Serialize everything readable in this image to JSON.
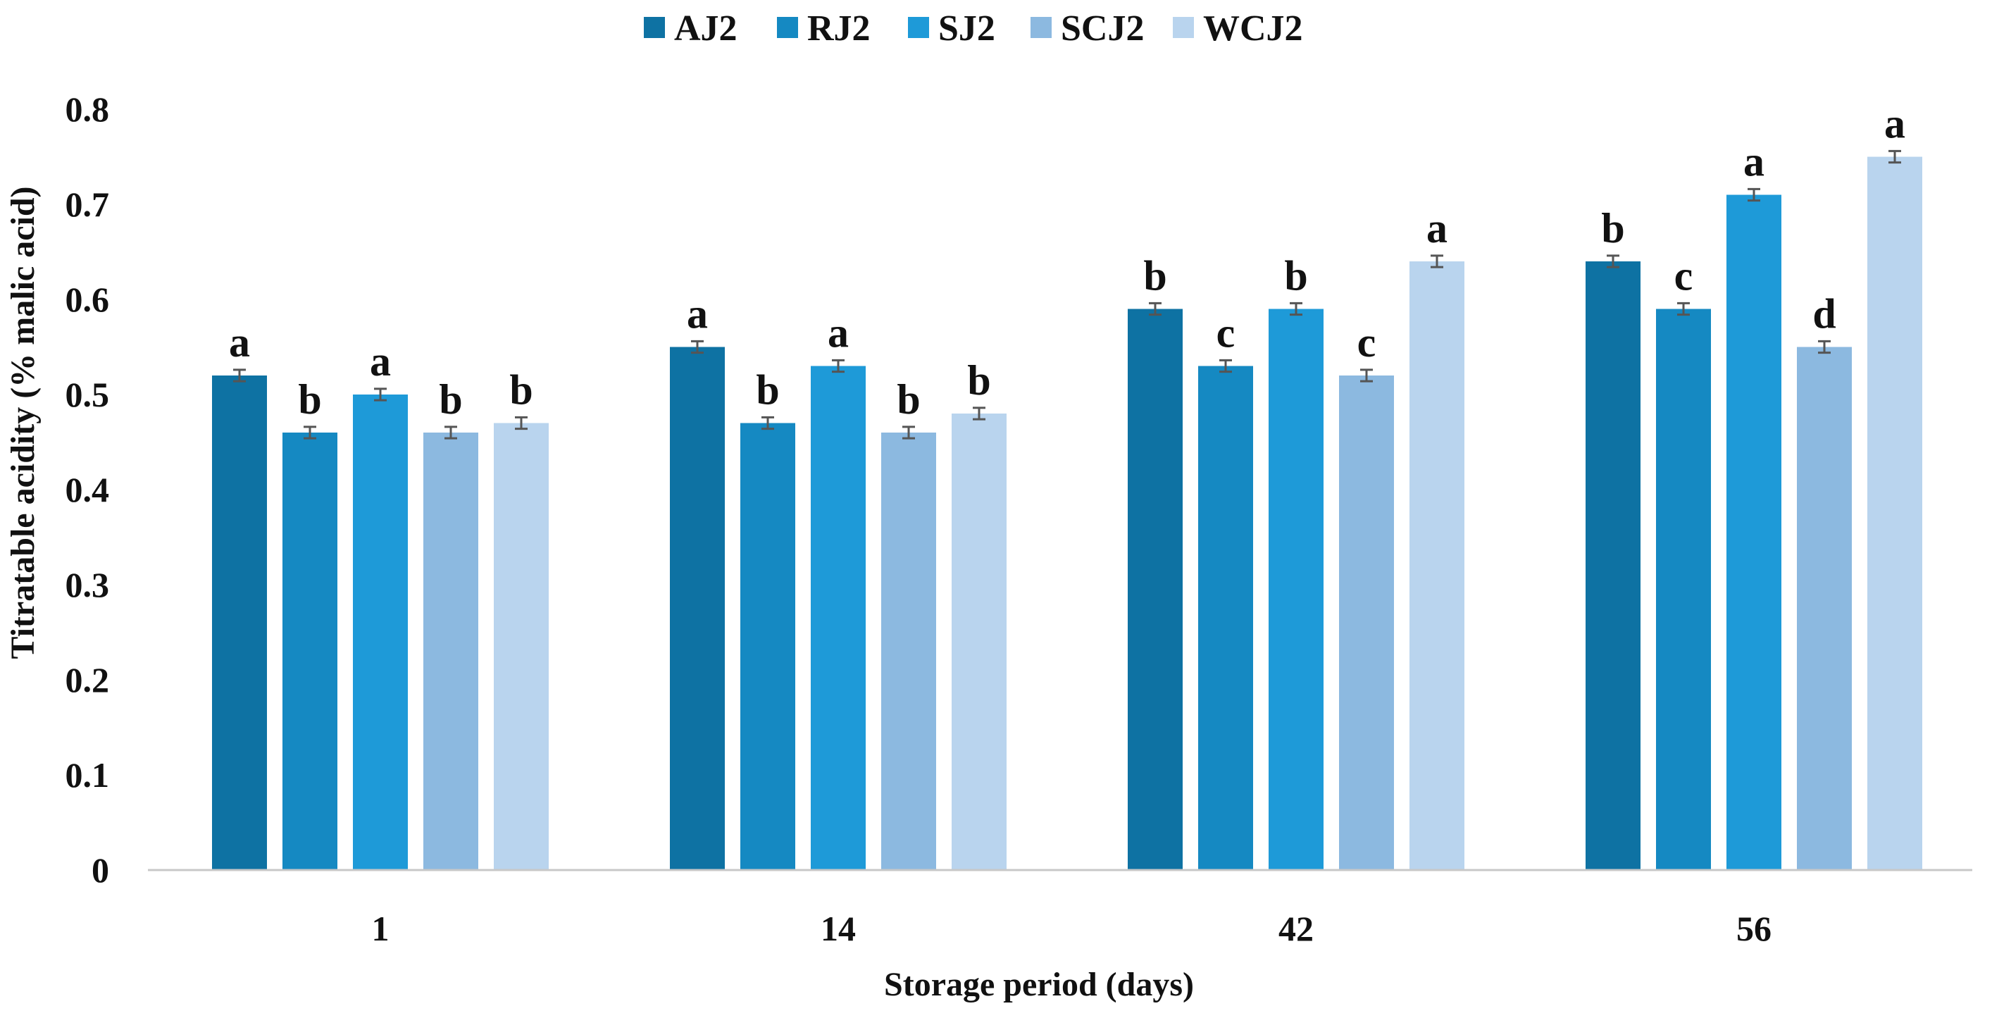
{
  "chart_data": {
    "type": "bar",
    "title": "",
    "xlabel": "Storage period (days)",
    "ylabel": "Titratable acidity (% malic acid)",
    "categories": [
      "1",
      "14",
      "42",
      "56"
    ],
    "ylim": [
      0,
      0.8
    ],
    "yticks": [
      "0",
      "0.1",
      "0.2",
      "0.3",
      "0.4",
      "0.5",
      "0.6",
      "0.7",
      "0.8"
    ],
    "grid": false,
    "legend_position": "top",
    "error_bar": 0.006,
    "series": [
      {
        "name": "AJ2",
        "color": "#0e72a3",
        "values": [
          0.52,
          0.55,
          0.59,
          0.64
        ],
        "letters": [
          "a",
          "a",
          "b",
          "b"
        ]
      },
      {
        "name": "RJ2",
        "color": "#1589c2",
        "values": [
          0.46,
          0.47,
          0.53,
          0.59
        ],
        "letters": [
          "b",
          "b",
          "c",
          "c"
        ]
      },
      {
        "name": "SJ2",
        "color": "#1e9ad8",
        "values": [
          0.5,
          0.53,
          0.59,
          0.71
        ],
        "letters": [
          "a",
          "a",
          "b",
          "a"
        ]
      },
      {
        "name": "SCJ2",
        "color": "#8cb9e0",
        "values": [
          0.46,
          0.46,
          0.52,
          0.55
        ],
        "letters": [
          "b",
          "b",
          "c",
          "d"
        ]
      },
      {
        "name": "WCJ2",
        "color": "#b9d4ee",
        "values": [
          0.47,
          0.48,
          0.64,
          0.75
        ],
        "letters": [
          "b",
          "b",
          "a",
          "a"
        ]
      }
    ]
  }
}
